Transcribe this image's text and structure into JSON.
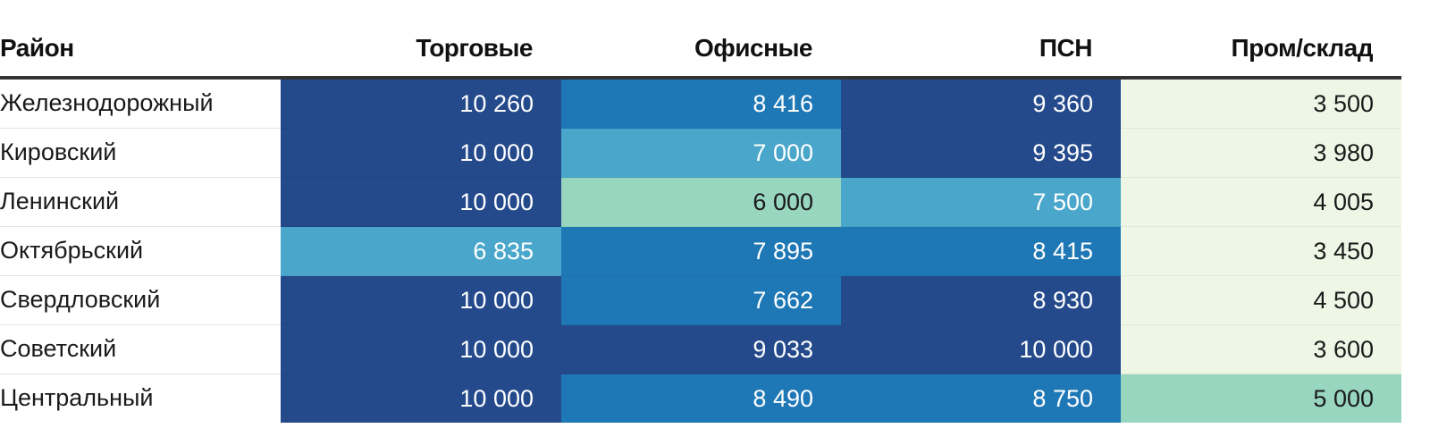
{
  "chart_data": {
    "type": "table",
    "columns": [
      "Район",
      "Торговые",
      "Офисные",
      "ПСН",
      "Пром/склад"
    ],
    "rows": [
      {
        "district": "Железнодорожный",
        "values": [
          "10 260",
          "8 416",
          "9 360",
          "3 500"
        ]
      },
      {
        "district": "Кировский",
        "values": [
          "10 000",
          "7 000",
          "9 395",
          "3 980"
        ]
      },
      {
        "district": "Ленинский",
        "values": [
          "10 000",
          "6 000",
          "7 500",
          "4 005"
        ]
      },
      {
        "district": "Октябрьский",
        "values": [
          "6 835",
          "7 895",
          "8 415",
          "3 450"
        ]
      },
      {
        "district": "Свердловский",
        "values": [
          "10 000",
          "7 662",
          "8 930",
          "4 500"
        ]
      },
      {
        "district": "Советский",
        "values": [
          "10 000",
          "9 033",
          "10 000",
          "3 600"
        ]
      },
      {
        "district": "Центральный",
        "values": [
          "10 000",
          "8 490",
          "8 750",
          "5 000"
        ]
      }
    ],
    "color_scale": {
      "level_1": "#eef7e6",
      "level_2": "#98d6c0",
      "level_3": "#4aa7cb",
      "level_4": "#1f78b6",
      "level_5": "#244a8c"
    },
    "cell_levels": [
      [
        5,
        4,
        5,
        1
      ],
      [
        5,
        3,
        5,
        1
      ],
      [
        5,
        2,
        3,
        1
      ],
      [
        3,
        4,
        4,
        1
      ],
      [
        5,
        4,
        5,
        1
      ],
      [
        5,
        5,
        5,
        1
      ],
      [
        5,
        4,
        4,
        2
      ]
    ]
  }
}
